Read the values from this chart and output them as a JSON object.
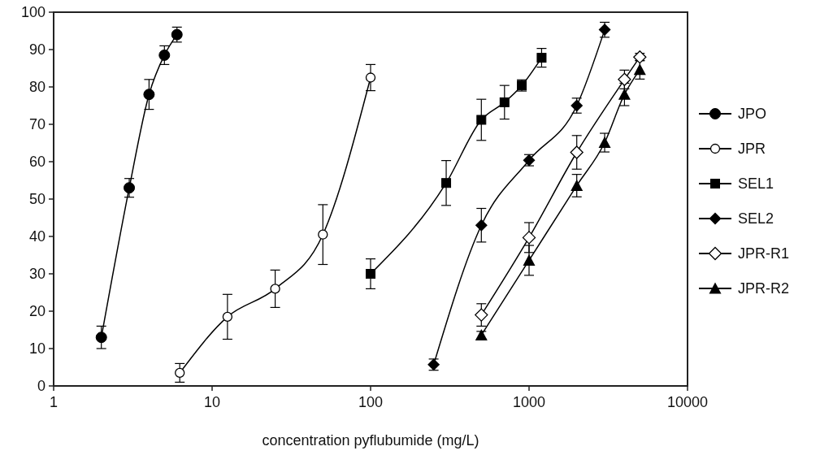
{
  "chart_data": {
    "type": "line",
    "xlabel": "concentration pyflubumide (mg/L)",
    "log": "x",
    "xlim": [
      1,
      10000
    ],
    "xticks": [
      1,
      10,
      100,
      1000,
      10000
    ],
    "ylim": [
      0,
      100
    ],
    "yticks": [
      0,
      10,
      20,
      30,
      40,
      50,
      60,
      70,
      80,
      90,
      100
    ],
    "grid": false,
    "legend": "right",
    "line_style": "solid",
    "series": [
      {
        "name": "JPO",
        "color": "#000000",
        "marker": "circle",
        "x": [
          2,
          3,
          4,
          5,
          6
        ],
        "values": [
          13,
          53,
          78,
          88.5,
          94
        ],
        "errors": [
          3,
          2.5,
          4,
          2.5,
          2
        ]
      },
      {
        "name": "JPR",
        "color": "#000000",
        "marker": "circle-open",
        "x": [
          6.25,
          12.5,
          25,
          50,
          100
        ],
        "values": [
          3.5,
          18.5,
          26,
          40.5,
          82.5
        ],
        "errors": [
          2.5,
          6,
          5,
          8,
          3.5
        ]
      },
      {
        "name": "SEL1",
        "color": "#000000",
        "marker": "square",
        "x": [
          100,
          300,
          500,
          700,
          900,
          1200
        ],
        "values": [
          30,
          54.3,
          71.2,
          75.9,
          80.4,
          87.8
        ],
        "errors": [
          4,
          6,
          5.5,
          4.5,
          1.5,
          2.5
        ]
      },
      {
        "name": "SEL2",
        "color": "#000000",
        "marker": "diamond",
        "x": [
          250,
          500,
          1000,
          2000,
          3000
        ],
        "values": [
          5.7,
          43,
          60.4,
          75,
          95.3
        ],
        "errors": [
          1.5,
          4.5,
          1.5,
          2,
          2
        ]
      },
      {
        "name": "JPR-R1",
        "color": "#000000",
        "marker": "diamond-open",
        "x": [
          500,
          1000,
          2000,
          4000,
          5000
        ],
        "values": [
          19,
          39.7,
          62.5,
          82,
          88
        ],
        "errors": [
          3,
          4,
          4.5,
          2.5,
          1
        ]
      },
      {
        "name": "JPR-R2",
        "color": "#000000",
        "marker": "triangle",
        "x": [
          500,
          1000,
          2000,
          3000,
          4000,
          5000
        ],
        "values": [
          13.6,
          33.6,
          53.6,
          65.1,
          78,
          84.6
        ],
        "errors": [
          1,
          4,
          3,
          2.5,
          3,
          2.5
        ]
      }
    ]
  }
}
